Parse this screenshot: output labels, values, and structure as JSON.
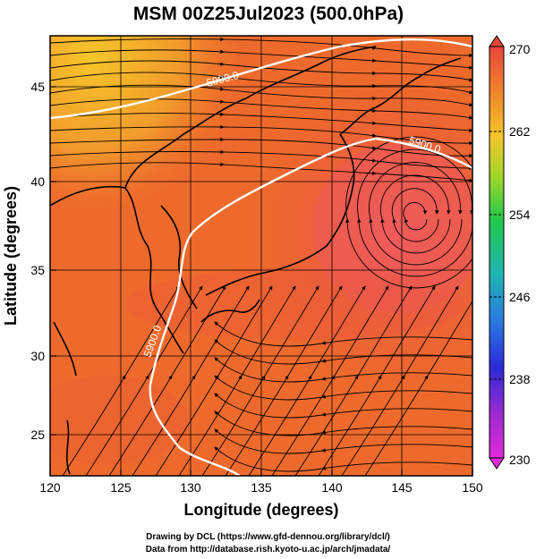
{
  "title": "MSM 00Z25Jul2023 (500.0hPa)",
  "axes": {
    "xlabel": "Longitude (degrees)",
    "ylabel": "Latitude  (degrees)",
    "xticks": [
      "120",
      "125",
      "130",
      "135",
      "140",
      "145",
      "150"
    ],
    "yticks": [
      "25",
      "30",
      "35",
      "40",
      "45"
    ],
    "xlim": [
      120,
      150
    ],
    "ylim": [
      22.4,
      47.6
    ]
  },
  "colorbar": {
    "ticks": [
      "270",
      "262",
      "254",
      "246",
      "238",
      "230"
    ],
    "range": [
      230,
      270
    ],
    "colors_top_to_bottom": [
      "#e8453c",
      "#f08a2a",
      "#f5c52a",
      "#9bd62a",
      "#23c84a",
      "#1fb5b0",
      "#2a78e0",
      "#2a2ad8",
      "#9a2ad0",
      "#e02ad8"
    ]
  },
  "contours": [
    {
      "label": "5900.0"
    },
    {
      "label": "5900.0"
    },
    {
      "label": "5900.0"
    }
  ],
  "credits": {
    "line1": "Drawing by DCL (https://www.gfd-dennou.org/library/dcl/)",
    "line2": "Data from http://database.rish.kyoto-u.ac.jp/arch/jmadata/"
  },
  "chart_data": {
    "type": "heatmap",
    "title": "MSM 00Z25Jul2023 (500.0hPa)",
    "xlabel": "Longitude (degrees)",
    "ylabel": "Latitude  (degrees)",
    "xlim": [
      120,
      150
    ],
    "ylim": [
      22.4,
      47.6
    ],
    "colorbar_range": [
      230,
      270
    ],
    "field_regions": [
      {
        "name": "northwest",
        "value": 263
      },
      {
        "name": "north",
        "value": 266
      },
      {
        "name": "central",
        "value": 267
      },
      {
        "name": "east-high",
        "value": 268.5
      },
      {
        "name": "south",
        "value": 268
      }
    ],
    "contour_levels": [
      5900.0
    ]
  }
}
